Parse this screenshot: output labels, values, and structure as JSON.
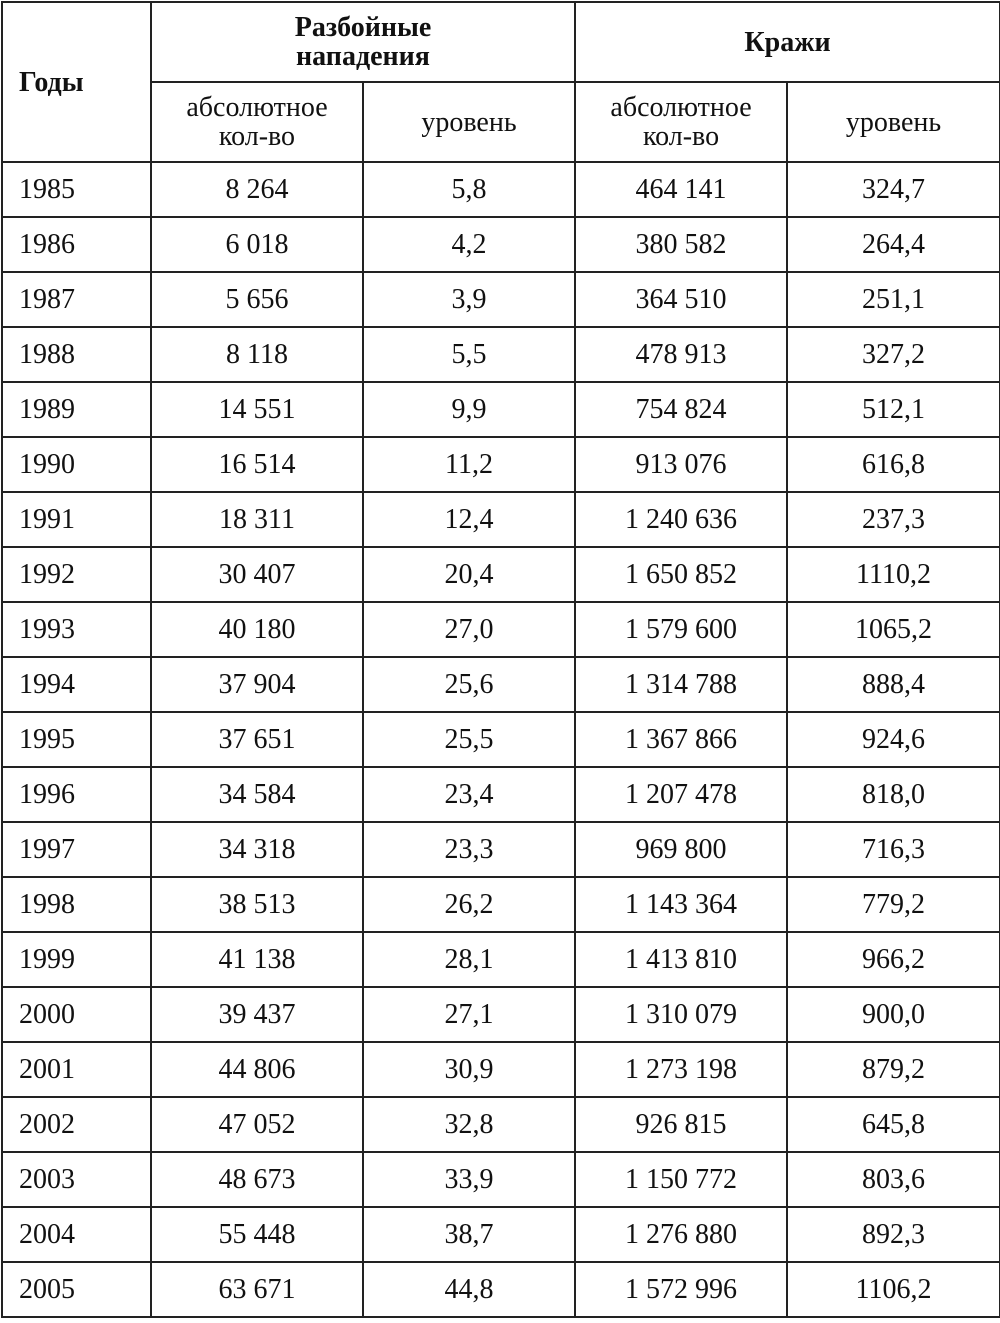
{
  "header": {
    "years": "Годы",
    "robbery": [
      "Разбойные",
      "нападения"
    ],
    "theft": "Кражи",
    "sub": [
      [
        "абсолютное",
        "кол-во"
      ],
      [
        "уровень"
      ],
      [
        "абсолютное",
        "кол-во"
      ],
      [
        "уровень"
      ]
    ]
  },
  "table": {
    "rows": [
      [
        "1985",
        "8 264",
        "5,8",
        "464 141",
        "324,7"
      ],
      [
        "1986",
        "6 018",
        "4,2",
        "380 582",
        "264,4"
      ],
      [
        "1987",
        "5 656",
        "3,9",
        "364 510",
        "251,1"
      ],
      [
        "1988",
        "8 118",
        "5,5",
        "478 913",
        "327,2"
      ],
      [
        "1989",
        "14 551",
        "9,9",
        "754 824",
        "512,1"
      ],
      [
        "1990",
        "16 514",
        "11,2",
        "913 076",
        "616,8"
      ],
      [
        "1991",
        "18 311",
        "12,4",
        "1 240 636",
        "237,3"
      ],
      [
        "1992",
        "30 407",
        "20,4",
        "1 650 852",
        "1110,2"
      ],
      [
        "1993",
        "40 180",
        "27,0",
        "1 579 600",
        "1065,2"
      ],
      [
        "1994",
        "37 904",
        "25,6",
        "1 314 788",
        "888,4"
      ],
      [
        "1995",
        "37 651",
        "25,5",
        "1 367 866",
        "924,6"
      ],
      [
        "1996",
        "34 584",
        "23,4",
        "1 207 478",
        "818,0"
      ],
      [
        "1997",
        "34 318",
        "23,3",
        "969 800",
        "716,3"
      ],
      [
        "1998",
        "38 513",
        "26,2",
        "1 143 364",
        "779,2"
      ],
      [
        "1999",
        "41 138",
        "28,1",
        "1 413 810",
        "966,2"
      ],
      [
        "2000",
        "39 437",
        "27,1",
        "1 310 079",
        "900,0"
      ],
      [
        "2001",
        "44 806",
        "30,9",
        "1 273 198",
        "879,2"
      ],
      [
        "2002",
        "47 052",
        "32,8",
        "926 815",
        "645,8"
      ],
      [
        "2003",
        "48 673",
        "33,9",
        "1 150 772",
        "803,6"
      ],
      [
        "2004",
        "55 448",
        "38,7",
        "1 276 880",
        "892,3"
      ],
      [
        "2005",
        "63 671",
        "44,8",
        "1 572 996",
        "1106,2"
      ]
    ]
  }
}
